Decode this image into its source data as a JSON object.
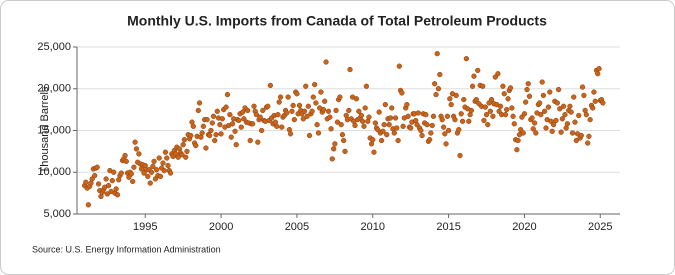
{
  "chart_data": {
    "type": "scatter",
    "title": "Monthly U.S. Imports from Canada of Total Petroleum Products",
    "ylabel": "Thousand Barrels",
    "source": "Source: U.S. Energy Information Administration",
    "color": "#c8641b",
    "grid": true,
    "xlim": [
      1990.5,
      2026.3
    ],
    "xticks": [
      1995,
      2000,
      2005,
      2010,
      2015,
      2020,
      2025
    ],
    "ylim": [
      5000,
      25000
    ],
    "yticks": [
      {
        "value": 5000,
        "label": "5,000"
      },
      {
        "value": 10000,
        "label": "10,000"
      },
      {
        "value": 15000,
        "label": "15,000"
      },
      {
        "value": 20000,
        "label": "20,000"
      },
      {
        "value": 25000,
        "label": "25,000"
      }
    ],
    "x": [
      1991,
      1991.08,
      1991.17,
      1991.25,
      1991.33,
      1991.42,
      1991.5,
      1991.58,
      1991.67,
      1991.75,
      1991.83,
      1991.92,
      1992,
      1992.08,
      1992.17,
      1992.25,
      1992.33,
      1992.42,
      1992.5,
      1992.58,
      1992.67,
      1992.75,
      1992.83,
      1992.92,
      1993,
      1993.08,
      1993.17,
      1993.25,
      1993.33,
      1993.42,
      1993.5,
      1993.58,
      1993.67,
      1993.75,
      1993.83,
      1993.92,
      1994,
      1994.08,
      1994.17,
      1994.25,
      1994.33,
      1994.42,
      1994.5,
      1994.58,
      1994.67,
      1994.75,
      1994.83,
      1994.92,
      1995,
      1995.08,
      1995.17,
      1995.25,
      1995.33,
      1995.42,
      1995.5,
      1995.58,
      1995.67,
      1995.75,
      1995.83,
      1995.92,
      1996,
      1996.08,
      1996.17,
      1996.25,
      1996.33,
      1996.42,
      1996.5,
      1996.58,
      1996.67,
      1996.75,
      1996.83,
      1996.92,
      1997,
      1997.08,
      1997.17,
      1997.25,
      1997.33,
      1997.42,
      1997.5,
      1997.58,
      1997.67,
      1997.75,
      1997.83,
      1997.92,
      1998,
      1998.08,
      1998.17,
      1998.25,
      1998.33,
      1998.42,
      1998.5,
      1998.58,
      1998.67,
      1998.75,
      1998.83,
      1998.92,
      1999,
      1999.08,
      1999.17,
      1999.25,
      1999.33,
      1999.42,
      1999.5,
      1999.58,
      1999.67,
      1999.75,
      1999.83,
      1999.92,
      2000,
      2000.08,
      2000.17,
      2000.25,
      2000.33,
      2000.42,
      2000.5,
      2000.58,
      2000.67,
      2000.75,
      2000.83,
      2000.92,
      2001,
      2001.08,
      2001.17,
      2001.25,
      2001.33,
      2001.42,
      2001.5,
      2001.58,
      2001.67,
      2001.75,
      2001.83,
      2001.92,
      2002,
      2002.08,
      2002.17,
      2002.25,
      2002.33,
      2002.42,
      2002.5,
      2002.58,
      2002.67,
      2002.75,
      2002.83,
      2002.92,
      2003,
      2003.08,
      2003.17,
      2003.25,
      2003.33,
      2003.42,
      2003.5,
      2003.58,
      2003.67,
      2003.75,
      2003.83,
      2003.92,
      2004,
      2004.08,
      2004.17,
      2004.25,
      2004.33,
      2004.42,
      2004.5,
      2004.58,
      2004.67,
      2004.75,
      2004.83,
      2004.92,
      2005,
      2005.08,
      2005.17,
      2005.25,
      2005.33,
      2005.42,
      2005.5,
      2005.58,
      2005.67,
      2005.75,
      2005.83,
      2005.92,
      2006,
      2006.08,
      2006.17,
      2006.25,
      2006.33,
      2006.42,
      2006.5,
      2006.58,
      2006.67,
      2006.75,
      2006.83,
      2006.92,
      2007,
      2007.08,
      2007.17,
      2007.25,
      2007.33,
      2007.42,
      2007.5,
      2007.58,
      2007.67,
      2007.75,
      2007.83,
      2007.92,
      2008,
      2008.08,
      2008.17,
      2008.25,
      2008.33,
      2008.42,
      2008.5,
      2008.58,
      2008.67,
      2008.75,
      2008.83,
      2008.92,
      2009,
      2009.08,
      2009.17,
      2009.25,
      2009.33,
      2009.42,
      2009.5,
      2009.58,
      2009.67,
      2009.75,
      2009.83,
      2009.92,
      2010,
      2010.08,
      2010.17,
      2010.25,
      2010.33,
      2010.42,
      2010.5,
      2010.58,
      2010.67,
      2010.75,
      2010.83,
      2010.92,
      2011,
      2011.08,
      2011.17,
      2011.25,
      2011.33,
      2011.42,
      2011.5,
      2011.58,
      2011.67,
      2011.75,
      2011.83,
      2011.92,
      2012,
      2012.08,
      2012.17,
      2012.25,
      2012.33,
      2012.42,
      2012.5,
      2012.58,
      2012.67,
      2012.75,
      2012.83,
      2012.92,
      2013,
      2013.08,
      2013.17,
      2013.25,
      2013.33,
      2013.42,
      2013.5,
      2013.58,
      2013.67,
      2013.75,
      2013.83,
      2013.92,
      2014,
      2014.08,
      2014.17,
      2014.25,
      2014.33,
      2014.42,
      2014.5,
      2014.58,
      2014.67,
      2014.75,
      2014.83,
      2014.92,
      2015,
      2015.08,
      2015.17,
      2015.25,
      2015.33,
      2015.42,
      2015.5,
      2015.58,
      2015.67,
      2015.75,
      2015.83,
      2015.92,
      2016,
      2016.08,
      2016.17,
      2016.25,
      2016.33,
      2016.42,
      2016.5,
      2016.58,
      2016.67,
      2016.75,
      2016.83,
      2016.92,
      2017,
      2017.08,
      2017.17,
      2017.25,
      2017.33,
      2017.42,
      2017.5,
      2017.58,
      2017.67,
      2017.75,
      2017.83,
      2017.92,
      2018,
      2018.08,
      2018.17,
      2018.25,
      2018.33,
      2018.42,
      2018.5,
      2018.58,
      2018.67,
      2018.75,
      2018.83,
      2018.92,
      2019,
      2019.08,
      2019.17,
      2019.25,
      2019.33,
      2019.42,
      2019.5,
      2019.58,
      2019.67,
      2019.75,
      2019.83,
      2019.92,
      2020,
      2020.08,
      2020.17,
      2020.25,
      2020.33,
      2020.42,
      2020.5,
      2020.58,
      2020.67,
      2020.75,
      2020.83,
      2020.92,
      2021,
      2021.08,
      2021.17,
      2021.25,
      2021.33,
      2021.42,
      2021.5,
      2021.58,
      2021.67,
      2021.75,
      2021.83,
      2021.92,
      2022,
      2022.08,
      2022.17,
      2022.25,
      2022.33,
      2022.42,
      2022.5,
      2022.58,
      2022.67,
      2022.75,
      2022.83,
      2022.92,
      2023,
      2023.08,
      2023.17,
      2023.25,
      2023.33,
      2023.42,
      2023.5,
      2023.58,
      2023.67,
      2023.75,
      2023.83,
      2023.92,
      2024,
      2024.08,
      2024.17,
      2024.25,
      2024.33,
      2024.42,
      2024.5,
      2024.58,
      2024.67,
      2024.75,
      2024.83,
      2024.92,
      2025,
      2025.08,
      2025.17
    ],
    "values": [
      8400,
      8800,
      8100,
      6100,
      8300,
      8700,
      9200,
      10400,
      9600,
      10500,
      10600,
      8600,
      7800,
      7100,
      7600,
      7900,
      8200,
      9200,
      7400,
      8400,
      10200,
      7700,
      9000,
      10000,
      7500,
      8000,
      7300,
      9100,
      9600,
      9900,
      11400,
      11600,
      12000,
      11300,
      9900,
      9400,
      10000,
      9800,
      8900,
      10600,
      13600,
      12800,
      11200,
      12200,
      11000,
      10400,
      10900,
      9900,
      10800,
      10300,
      9500,
      10300,
      8700,
      10000,
      10700,
      11300,
      9200,
      10300,
      9600,
      11700,
      9500,
      10500,
      11100,
      10200,
      12400,
      11700,
      10800,
      10200,
      9900,
      12200,
      11900,
      12600,
      12200,
      13000,
      11800,
      12800,
      12300,
      12100,
      13300,
      13900,
      11800,
      12500,
      14500,
      14000,
      14400,
      16000,
      15500,
      13500,
      13200,
      14300,
      17400,
      18300,
      14200,
      14700,
      15500,
      16300,
      12900,
      16300,
      14500,
      14400,
      15000,
      15900,
      16700,
      13800,
      14500,
      17300,
      16500,
      15700,
      14600,
      16400,
      17500,
      15400,
      17800,
      19300,
      15600,
      16900,
      14200,
      15800,
      16400,
      14900,
      13300,
      16300,
      16200,
      17000,
      15400,
      17200,
      16400,
      17700,
      16000,
      17400,
      15900,
      13800,
      15800,
      15800,
      17900,
      17300,
      16900,
      13600,
      16300,
      16600,
      15000,
      17400,
      16200,
      16100,
      17800,
      17900,
      16200,
      20400,
      16500,
      15800,
      16800,
      16000,
      15500,
      16900,
      18400,
      19000,
      15400,
      16600,
      16800,
      17400,
      17100,
      19000,
      15100,
      14600,
      17300,
      18000,
      16300,
      19600,
      19400,
      17000,
      18000,
      17400,
      17000,
      16400,
      17300,
      20300,
      16700,
      17900,
      14400,
      17000,
      17300,
      19000,
      20500,
      18300,
      15700,
      14700,
      17700,
      19600,
      17200,
      17500,
      18500,
      23200,
      16400,
      17300,
      16600,
      15200,
      11600,
      12800,
      13400,
      17400,
      16000,
      18700,
      19000,
      15700,
      14500,
      13800,
      12500,
      16800,
      16300,
      17400,
      22300,
      16400,
      19000,
      16100,
      15600,
      18800,
      16300,
      17300,
      16500,
      16800,
      16100,
      15500,
      17700,
      20300,
      16100,
      16600,
      14100,
      13400,
      13900,
      12400,
      15900,
      15300,
      15100,
      17200,
      14700,
      13800,
      14900,
      15700,
      18100,
      14500,
      16400,
      15700,
      16500,
      17700,
      15200,
      14700,
      16500,
      15300,
      13800,
      22700,
      19800,
      19500,
      15500,
      16500,
      17700,
      18100,
      16700,
      15400,
      15300,
      16000,
      17000,
      17000,
      16200,
      15700,
      17100,
      15300,
      15000,
      14400,
      17000,
      15900,
      16900,
      15700,
      13700,
      13900,
      14700,
      15600,
      16700,
      20600,
      19300,
      24200,
      20000,
      21700,
      16700,
      16300,
      15400,
      14600,
      13400,
      16700,
      15000,
      18800,
      18100,
      19400,
      16700,
      16300,
      19200,
      14700,
      15100,
      12000,
      17000,
      16100,
      18700,
      17800,
      23600,
      17600,
      16100,
      16900,
      17400,
      20300,
      21500,
      18500,
      18700,
      22200,
      18200,
      20400,
      17900,
      20300,
      16200,
      17800,
      16900,
      15700,
      18300,
      17300,
      18700,
      16700,
      18200,
      21400,
      18100,
      21800,
      17300,
      17900,
      16900,
      20300,
      19400,
      16900,
      17500,
      18800,
      19800,
      20100,
      17700,
      16700,
      15800,
      13900,
      12700,
      13800,
      14500,
      15100,
      16600,
      14700,
      17000,
      18400,
      19900,
      20600,
      19100,
      16300,
      16500,
      15200,
      15900,
      14700,
      17100,
      18100,
      18300,
      16900,
      20800,
      19200,
      17300,
      15300,
      16300,
      17800,
      19600,
      16100,
      14900,
      15700,
      18500,
      16200,
      18300,
      19900,
      17600,
      14800,
      16400,
      17900,
      16900,
      15300,
      15800,
      17400,
      17900,
      17200,
      14700,
      19000,
      16000,
      13800,
      14600,
      16800,
      14100,
      14400,
      20200,
      19200,
      17400,
      16900,
      13500,
      14300,
      16300,
      18000,
      17700,
      19600,
      18500,
      22200,
      21800,
      22400,
      18600,
      18700,
      18300
    ]
  }
}
